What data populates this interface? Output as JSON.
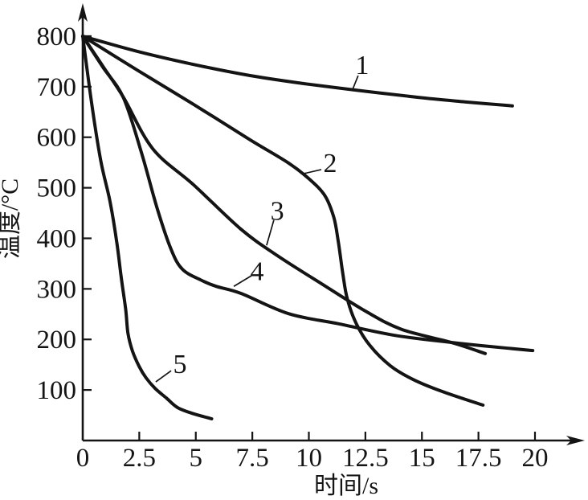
{
  "figure": {
    "background": "#ffffff",
    "line_color": "#141414"
  },
  "chart_data": {
    "type": "line",
    "title": "",
    "xlabel": "时间/s",
    "ylabel": "温度/°C",
    "xlim": [
      0,
      22.2
    ],
    "ylim": [
      0,
      865
    ],
    "grid": false,
    "legend": "none (curves numbered 1-5 with leader lines)",
    "x_tick_values": [
      0,
      2.5,
      5,
      7.5,
      10,
      12.5,
      15,
      17.5,
      20
    ],
    "x_tick_labels": [
      "0",
      "2.5",
      "5",
      "7.5",
      "10",
      "12.5",
      "15",
      "17.5",
      "20"
    ],
    "y_tick_values": [
      100,
      200,
      300,
      400,
      500,
      600,
      700,
      800
    ],
    "y_tick_labels": [
      "100",
      "200",
      "300",
      "400",
      "500",
      "600",
      "700",
      "800"
    ],
    "series": [
      {
        "name": "1",
        "points": [
          [
            0,
            800
          ],
          [
            2.4,
            770
          ],
          [
            4.9,
            744
          ],
          [
            7.4,
            722
          ],
          [
            9.8,
            706
          ],
          [
            12.3,
            692
          ],
          [
            14.8,
            679
          ],
          [
            16.9,
            670
          ],
          [
            19,
            662
          ]
        ]
      },
      {
        "name": "2",
        "points": [
          [
            0,
            800
          ],
          [
            2.4,
            733
          ],
          [
            4.9,
            665
          ],
          [
            7.4,
            595
          ],
          [
            9.1,
            549
          ],
          [
            10,
            518
          ],
          [
            10.7,
            485
          ],
          [
            11.1,
            442
          ],
          [
            11.3,
            394
          ],
          [
            11.5,
            331
          ],
          [
            11.7,
            280
          ],
          [
            12.1,
            231
          ],
          [
            12.7,
            188
          ],
          [
            13.6,
            148
          ],
          [
            14.6,
            121
          ],
          [
            15.9,
            97
          ],
          [
            17.7,
            70
          ]
        ]
      },
      {
        "name": "3",
        "points": [
          [
            0,
            800
          ],
          [
            0.9,
            740
          ],
          [
            1.8,
            679
          ],
          [
            3.1,
            577
          ],
          [
            4.9,
            506
          ],
          [
            7,
            418
          ],
          [
            8.6,
            366
          ],
          [
            10.6,
            309
          ],
          [
            12.5,
            256
          ],
          [
            14.1,
            220
          ],
          [
            16.3,
            194
          ],
          [
            17.8,
            172
          ]
        ]
      },
      {
        "name": "4",
        "points": [
          [
            0,
            800
          ],
          [
            0.9,
            738
          ],
          [
            1.8,
            678
          ],
          [
            2.6,
            569
          ],
          [
            3.3,
            458
          ],
          [
            3.9,
            379
          ],
          [
            4.4,
            339
          ],
          [
            5.2,
            318
          ],
          [
            5.9,
            305
          ],
          [
            7,
            291
          ],
          [
            9.1,
            251
          ],
          [
            11.3,
            231
          ],
          [
            13.8,
            208
          ],
          [
            16.3,
            194
          ],
          [
            18,
            186
          ],
          [
            19.9,
            178
          ]
        ]
      },
      {
        "name": "5",
        "points": [
          [
            0,
            800
          ],
          [
            0.4,
            665
          ],
          [
            0.8,
            553
          ],
          [
            1.2,
            474
          ],
          [
            1.5,
            394
          ],
          [
            1.7,
            323
          ],
          [
            1.9,
            259
          ],
          [
            2,
            212
          ],
          [
            2.2,
            177
          ],
          [
            2.5,
            146
          ],
          [
            2.8,
            124
          ],
          [
            3.2,
            103
          ],
          [
            3.7,
            84
          ],
          [
            4.2,
            65
          ],
          [
            4.9,
            53
          ],
          [
            5.7,
            43
          ]
        ]
      }
    ],
    "annotations": [
      {
        "text": "1",
        "x": 12.36,
        "y": 744,
        "leader": [
          [
            12.18,
            722
          ],
          [
            11.94,
            695
          ]
        ]
      },
      {
        "text": "2",
        "x": 10.94,
        "y": 550,
        "leader": [
          [
            10.55,
            536
          ],
          [
            9.77,
            528
          ]
        ]
      },
      {
        "text": "3",
        "x": 8.6,
        "y": 456,
        "leader": [
          [
            8.45,
            436
          ],
          [
            8.13,
            386
          ]
        ]
      },
      {
        "text": "4",
        "x": 7.71,
        "y": 336,
        "leader": [
          [
            7.46,
            326
          ],
          [
            6.68,
            305
          ]
        ]
      },
      {
        "text": "5",
        "x": 4.3,
        "y": 153,
        "leader": [
          [
            3.91,
            138
          ],
          [
            3.23,
            116
          ]
        ]
      }
    ]
  }
}
